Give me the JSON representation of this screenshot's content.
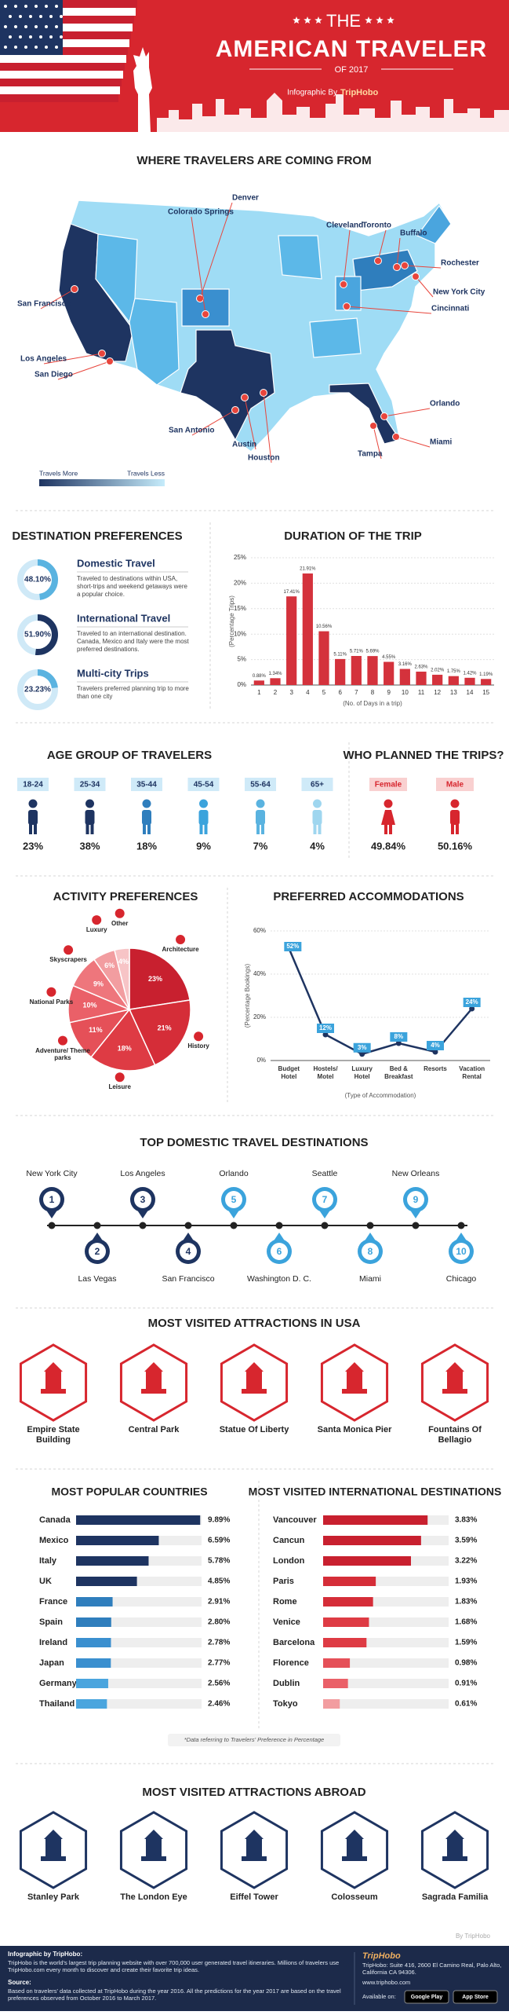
{
  "header": {
    "line1": "THE",
    "title": "AMERICAN TRAVELER",
    "year": "OF 2017",
    "by": "Infographic By",
    "brand": "TripHobo"
  },
  "map": {
    "title": "WHERE TRAVELERS ARE COMING FROM",
    "cities": [
      "Denver",
      "Colorado Springs",
      "Cleveland",
      "Toronto",
      "Buffalo",
      "Rochester",
      "New York City",
      "Cincinnati",
      "San Francisco",
      "Los Angeles",
      "San Diego",
      "San Antonio",
      "Austin",
      "Houston",
      "Orlando",
      "Miami",
      "Tampa"
    ],
    "legend_more": "Travels More",
    "legend_less": "Travels Less"
  },
  "destination_preferences": {
    "title": "DESTINATION PREFERENCES",
    "items": [
      {
        "name": "Domestic Travel",
        "value": 48.1,
        "value_label": "48.10%",
        "text": "Traveled to destinations within USA, short-trips and weekend getaways were a popular choice."
      },
      {
        "name": "International Travel",
        "value": 51.9,
        "value_label": "51.90%",
        "text": "Traveled to an international destination. Canada, Mexico and Italy were the most preferred destinations."
      },
      {
        "name": "Multi-city Trips",
        "value": 23.23,
        "value_label": "23.23%",
        "text": "Travelers preferred planning trip to more than one city"
      }
    ]
  },
  "age_group": {
    "title": "AGE GROUP OF TRAVELERS",
    "groups": [
      {
        "range": "18-24",
        "share": "23%"
      },
      {
        "range": "25-34",
        "share": "38%"
      },
      {
        "range": "35-44",
        "share": "18%"
      },
      {
        "range": "45-54",
        "share": "9%"
      },
      {
        "range": "55-64",
        "share": "7%"
      },
      {
        "range": "65+",
        "share": "4%"
      }
    ]
  },
  "planners": {
    "title": "WHO PLANNED THE TRIPS?",
    "groups": [
      {
        "name": "Female",
        "share": "49.84%"
      },
      {
        "name": "Male",
        "share": "50.16%"
      }
    ]
  },
  "chart_data": [
    {
      "type": "bar",
      "title": "DURATION OF THE TRIP",
      "categories": [
        "1",
        "2",
        "3",
        "4",
        "5",
        "6",
        "7",
        "8",
        "9",
        "10",
        "11",
        "12",
        "13",
        "14",
        "15"
      ],
      "values": [
        0.88,
        1.34,
        17.41,
        21.91,
        10.56,
        5.11,
        5.71,
        5.69,
        4.55,
        3.16,
        2.63,
        2.02,
        1.75,
        1.42,
        1.19
      ],
      "value_labels": [
        "0.88%",
        "1.34%",
        "17.41%",
        "21.91%",
        "10.56%",
        "5.11%",
        "5.71%",
        "5.69%",
        "4.55%",
        "3.16%",
        "2.63%",
        "2.02%",
        "1.75%",
        "1.42%",
        "1.19%"
      ],
      "ylim": [
        0,
        25
      ],
      "yticks": [
        {
          "value": 0,
          "label": "0%"
        },
        {
          "value": 5,
          "label": "5%"
        },
        {
          "value": 10,
          "label": "10%"
        },
        {
          "value": 15,
          "label": "15%"
        },
        {
          "value": 20,
          "label": "20%"
        },
        {
          "value": 25,
          "label": "25%"
        }
      ],
      "ylabel": "(Percentage Trips)",
      "xlabel": "(No. of Days in a trip)",
      "color": "#d4323c",
      "grid": true
    },
    {
      "type": "line",
      "title": "PREFERRED ACCOMMODATIONS",
      "categories": [
        "Budget Hotel",
        "Hostels/ Motel",
        "Luxury Hotel",
        "Bed & Breakfast",
        "Resorts",
        "Vacation Rental"
      ],
      "values": [
        52,
        12,
        3,
        8,
        4,
        24
      ],
      "value_labels": [
        "52%",
        "12%",
        "3%",
        "8%",
        "4%",
        "24%"
      ],
      "ylim": [
        0,
        60
      ],
      "yticks": [
        {
          "value": 0,
          "label": "0%"
        },
        {
          "value": 20,
          "label": "20%"
        },
        {
          "value": 40,
          "label": "40%"
        },
        {
          "value": 60,
          "label": "60%"
        }
      ],
      "ylabel": "(Percentage Bookings)",
      "xlabel": "(Type of Accommodation)",
      "color": "#1e3461",
      "marker_color": "#3ba3dc",
      "grid": true
    },
    {
      "type": "pie",
      "title": "ACTIVITY PREFERENCES",
      "categories": [
        "Architecture",
        "History",
        "Leisure",
        "Adventure/ Theme parks",
        "National Parks",
        "Skyscrapers",
        "Luxury",
        "Other"
      ],
      "values": [
        23,
        21,
        18,
        11,
        10,
        9,
        6,
        4
      ],
      "value_labels": [
        "23%",
        "21%",
        "18%",
        "11%",
        "10%",
        "9%",
        "6%",
        "4%"
      ],
      "colors": [
        "#c8202f",
        "#d52d38",
        "#de3b44",
        "#e55058",
        "#ea6068",
        "#ee767c",
        "#f29da0",
        "#f7c4c6"
      ]
    },
    {
      "type": "hbar",
      "title": "MOST POPULAR COUNTRIES",
      "categories": [
        "Canada",
        "Mexico",
        "Italy",
        "UK",
        "France",
        "Spain",
        "Ireland",
        "Japan",
        "Germany",
        "Thailand"
      ],
      "values": [
        9.89,
        6.59,
        5.78,
        4.85,
        2.91,
        2.8,
        2.78,
        2.77,
        2.56,
        2.46
      ],
      "value_labels": [
        "9.89%",
        "6.59%",
        "5.78%",
        "4.85%",
        "2.91%",
        "2.80%",
        "2.78%",
        "2.77%",
        "2.56%",
        "2.46%"
      ],
      "xlim": [
        0,
        10
      ],
      "colors": [
        "#1e3461",
        "#1e3461",
        "#1e3461",
        "#1e3461",
        "#2f7ebd",
        "#2f7ebd",
        "#3a8fcf",
        "#3a8fcf",
        "#4aa5de",
        "#4aa5de"
      ]
    },
    {
      "type": "hbar",
      "title": "MOST VISITED INTERNATIONAL DESTINATIONS",
      "categories": [
        "Vancouver",
        "Cancun",
        "London",
        "Paris",
        "Rome",
        "Venice",
        "Barcelona",
        "Florence",
        "Dublin",
        "Tokyo"
      ],
      "values": [
        3.83,
        3.59,
        3.22,
        1.93,
        1.83,
        1.68,
        1.59,
        0.98,
        0.91,
        0.61
      ],
      "value_labels": [
        "3.83%",
        "3.59%",
        "3.22%",
        "1.93%",
        "1.83%",
        "1.68%",
        "1.59%",
        "0.98%",
        "0.91%",
        "0.61%"
      ],
      "xlim": [
        0,
        4.6
      ],
      "colors": [
        "#c8202f",
        "#c8202f",
        "#c8202f",
        "#d52d38",
        "#d52d38",
        "#de3b44",
        "#de3b44",
        "#e55058",
        "#ea6068",
        "#f29da0"
      ]
    }
  ],
  "domestic_destinations": {
    "title": "TOP DOMESTIC TRAVEL DESTINATIONS",
    "items": [
      {
        "rank": 1,
        "name": "New York City"
      },
      {
        "rank": 2,
        "name": "Las Vegas"
      },
      {
        "rank": 3,
        "name": "Los Angeles"
      },
      {
        "rank": 4,
        "name": "San Francisco"
      },
      {
        "rank": 5,
        "name": "Orlando"
      },
      {
        "rank": 6,
        "name": "Washington D. C."
      },
      {
        "rank": 7,
        "name": "Seattle"
      },
      {
        "rank": 8,
        "name": "Miami"
      },
      {
        "rank": 9,
        "name": "New Orleans"
      },
      {
        "rank": 10,
        "name": "Chicago"
      }
    ]
  },
  "usa_attractions": {
    "title": "MOST VISITED ATTRACTIONS IN USA",
    "items": [
      "Empire State Building",
      "Central Park",
      "Statue Of Liberty",
      "Santa Monica Pier",
      "Fountains Of Bellagio"
    ]
  },
  "note": "*Data referring to Travelers' Preference in Percentage",
  "abroad_attractions": {
    "title": "MOST VISITED ATTRACTIONS ABROAD",
    "items": [
      "Stanley Park",
      "The London Eye",
      "Eiffel Tower",
      "Colosseum",
      "Sagrada Familia"
    ]
  },
  "credit": "By TripHobo",
  "footer": {
    "about_title": "Infographic by TripHobo:",
    "about": "TripHobo is the world's largest trip planning website with over 700,000 user generated travel itineraries. Millions of travelers use TripHobo.com every month to discover and create their favorite trip ideas.",
    "source_title": "Source:",
    "source": "Based on travelers' data collected at TripHobo during the year 2016. All the predictions for the year 2017 are based on the travel preferences observed from October 2016 to March 2017.",
    "brand": "TripHobo",
    "address": "TripHobo: Suite 416, 2600 El Camino Real, Palo Alto, California CA 94306.",
    "website": "www.triphobo.com",
    "available": "Available on:",
    "store1": "Google Play",
    "store2": "App Store"
  }
}
